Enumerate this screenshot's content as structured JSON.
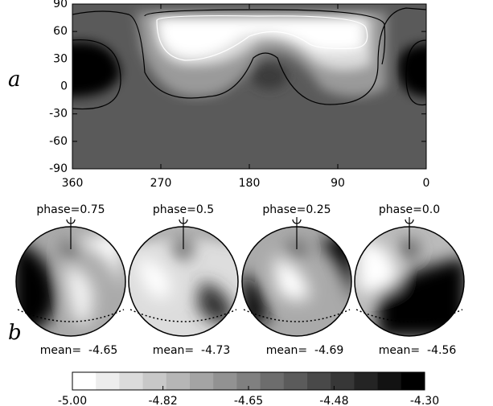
{
  "chart_data": [
    {
      "type": "map",
      "panel_label": "a",
      "xlim": [
        360,
        0
      ],
      "xticks": [
        360,
        270,
        180,
        90,
        0
      ],
      "ylim": [
        -90,
        90
      ],
      "yticks": [
        -90,
        -60,
        -30,
        0,
        30,
        60,
        90
      ]
    },
    {
      "type": "spheres",
      "panel_label": "b",
      "panels": [
        {
          "phase": "phase=0.75",
          "mean": "mean=  -4.65"
        },
        {
          "phase": "phase=0.5",
          "mean": "mean=  -4.73"
        },
        {
          "phase": "phase=0.25",
          "mean": "mean=  -4.69"
        },
        {
          "phase": "phase=0.0",
          "mean": "mean=  -4.56"
        }
      ]
    },
    {
      "type": "colorbar",
      "xlim": [
        -5,
        -4.3
      ],
      "xticks": [
        {
          "value": -5,
          "label": "-5.00"
        },
        {
          "value": -4.82,
          "label": "-4.82"
        },
        {
          "value": -4.65,
          "label": "-4.65"
        },
        {
          "value": -4.48,
          "label": "-4.48"
        },
        {
          "value": -4.3,
          "label": "-4.30"
        }
      ]
    }
  ]
}
